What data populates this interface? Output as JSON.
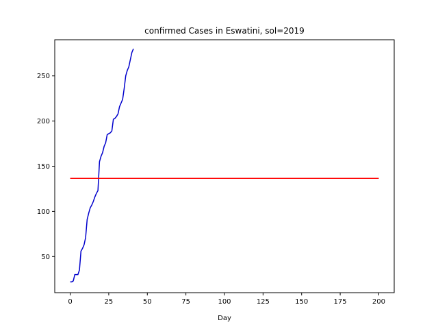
{
  "chart_data": {
    "type": "line",
    "title": "confirmed Cases in Eswatini, sol=2019",
    "xlabel": "Day",
    "ylabel": "",
    "xlim": [
      -10,
      210
    ],
    "ylim": [
      10,
      290
    ],
    "xticks": [
      0,
      25,
      50,
      75,
      100,
      125,
      150,
      175,
      200
    ],
    "yticks": [
      50,
      100,
      150,
      200,
      250
    ],
    "grid": false,
    "legend": "none",
    "series": [
      {
        "color": "#0000cc",
        "x": [
          0,
          1,
          2,
          3,
          4,
          5,
          6,
          7,
          8,
          9,
          10,
          11,
          12,
          13,
          14,
          15,
          16,
          17,
          18,
          19,
          20,
          21,
          22,
          23,
          24,
          25,
          26,
          27,
          28,
          29,
          30,
          31,
          32,
          33,
          34,
          35,
          36,
          37,
          38,
          39,
          40,
          41
        ],
        "y": [
          22,
          22,
          23,
          30,
          30,
          30,
          35,
          56,
          59,
          63,
          71,
          91,
          98,
          104,
          107,
          111,
          116,
          120,
          123,
          155,
          161,
          165,
          172,
          176,
          185,
          186,
          187,
          189,
          202,
          203,
          205,
          208,
          216,
          220,
          224,
          236,
          250,
          256,
          260,
          268,
          276,
          280
        ]
      },
      {
        "color": "#ff0000",
        "x": [
          0,
          200
        ],
        "y": [
          136.5,
          136.5
        ]
      }
    ]
  }
}
